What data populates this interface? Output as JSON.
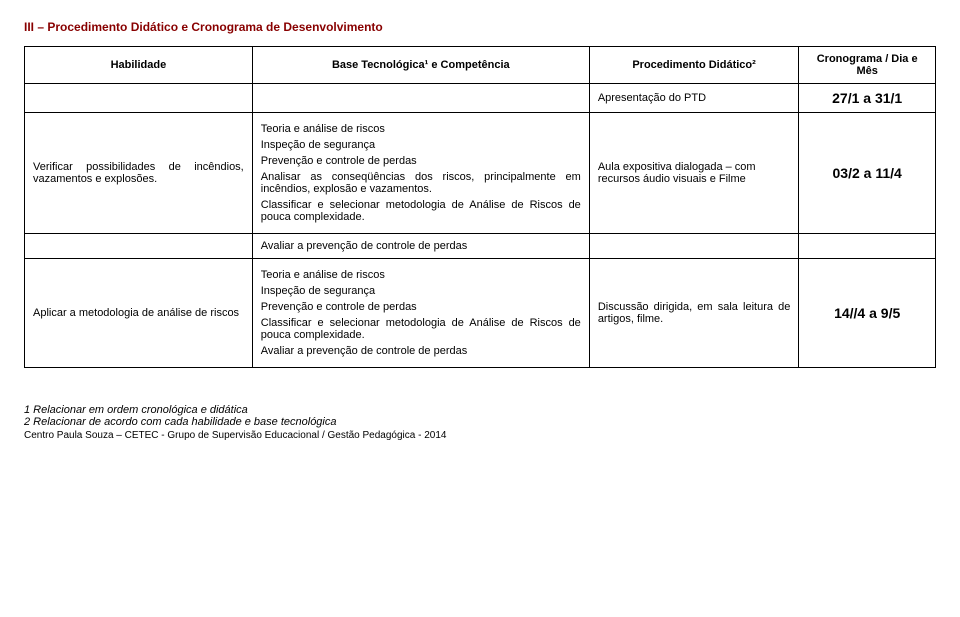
{
  "section_title": "III – Procedimento Didático e Cronograma de Desenvolvimento",
  "headers": {
    "habilidade": "Habilidade",
    "base": "Base Tecnológica¹ e Competência",
    "procedimento": "Procedimento Didático²",
    "cronograma": "Cronograma / Dia e Mês"
  },
  "row_ptd": {
    "procedimento": "Apresentação do PTD",
    "date": "27/1 a 31/1"
  },
  "row1": {
    "habilidade": "Verificar possibilidades de incêndios, vazamentos e explosões.",
    "base_p1": "Teoria e análise de riscos",
    "base_p2": "Inspeção de segurança",
    "base_p3": "Prevenção e controle de perdas",
    "base_p4": "Analisar as conseqüências dos riscos, principalmente em incêndios, explosão e vazamentos.",
    "base_p5": "Classificar e selecionar metodologia de Análise de Riscos de pouca complexidade.",
    "procedimento": "Aula expositiva dialogada – com recursos áudio visuais e Filme",
    "date": "03/2 a 11/4"
  },
  "row_avaliar1": {
    "text": "Avaliar a prevenção de controle de perdas"
  },
  "row2": {
    "habilidade": "Aplicar a metodologia de análise de riscos",
    "base_p1": "Teoria e análise de riscos",
    "base_p2": "Inspeção de segurança",
    "base_p3": "Prevenção e controle de perdas",
    "base_p4": "Classificar e selecionar metodologia de Análise de Riscos de pouca complexidade.",
    "base_p5": "Avaliar a prevenção de controle de perdas",
    "procedimento": "Discussão dirigida, em sala leitura de artigos, filme.",
    "date": "14//4 a 9/5"
  },
  "footnote1": "1 Relacionar em ordem cronológica e didática",
  "footnote2": "2 Relacionar de acordo com cada habilidade e base tecnológica",
  "credit": "Centro Paula Souza – CETEC - Grupo de Supervisão Educacional / Gestão Pedagógica - 2014"
}
